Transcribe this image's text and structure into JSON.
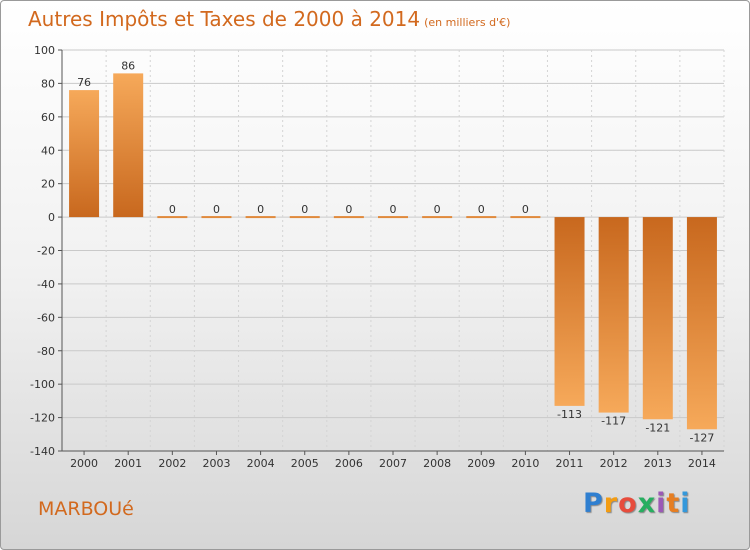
{
  "title": "Autres Impôts et Taxes de 2000 à 2014",
  "unit": "(en milliers d'€)",
  "commune": "MARBOUé",
  "logo": {
    "letters": [
      "P",
      "r",
      "o",
      "x",
      "i",
      "t",
      "i"
    ],
    "colors": [
      "#2f7fd0",
      "#f39c12",
      "#e74c3c",
      "#27ae60",
      "#9b59b6",
      "#e67e22",
      "#3498db"
    ]
  },
  "colors": {
    "bar_dark": "#c8681e",
    "bar_light": "#f6a95a",
    "accent": "#d2691e"
  },
  "chart_data": {
    "type": "bar",
    "categories": [
      "2000",
      "2001",
      "2002",
      "2003",
      "2004",
      "2005",
      "2006",
      "2007",
      "2008",
      "2009",
      "2010",
      "2011",
      "2012",
      "2013",
      "2014"
    ],
    "values": [
      76,
      86,
      0,
      0,
      0,
      0,
      0,
      0,
      0,
      0,
      0,
      -113,
      -117,
      -121,
      -127
    ],
    "data_labels": [
      "76",
      "86",
      "0",
      "0",
      "0",
      "0",
      "0",
      "0",
      "0",
      "0",
      "0",
      "-113",
      "-117",
      "-121",
      "-127"
    ],
    "yticks": [
      "100",
      "80",
      "60",
      "40",
      "20",
      "0",
      "-20",
      "-40",
      "-60",
      "-80",
      "-100",
      "-120",
      "-140"
    ],
    "ylim": [
      -140,
      100
    ],
    "grid": true
  }
}
